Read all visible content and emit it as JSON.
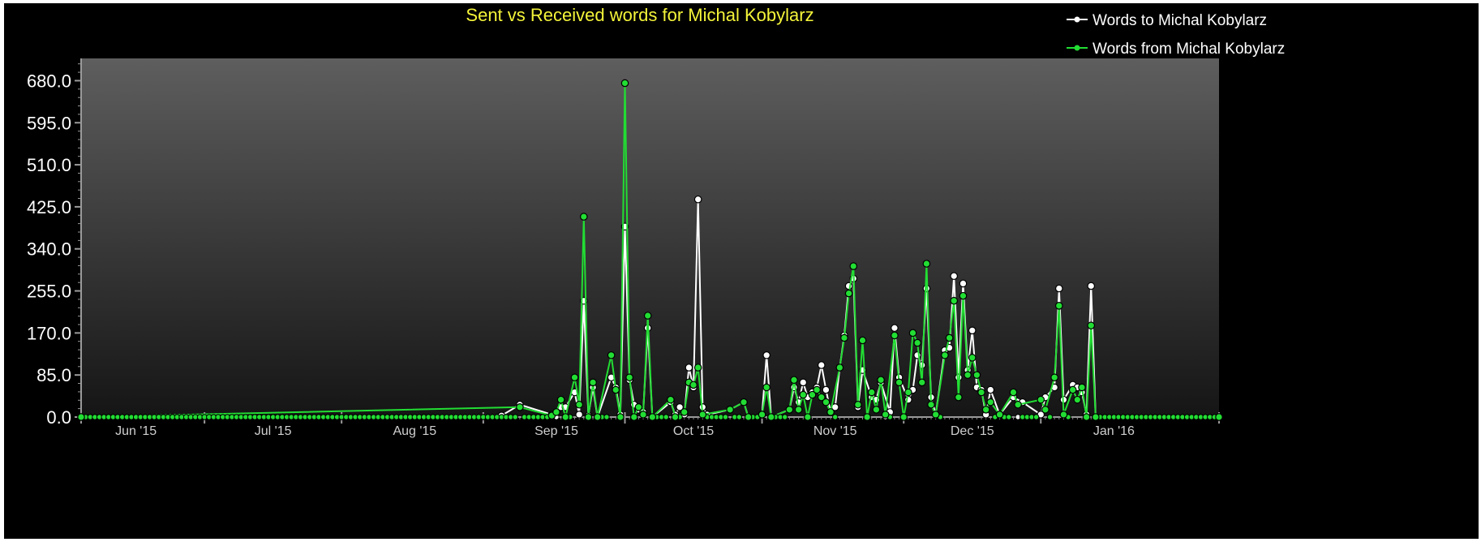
{
  "chart_data": {
    "type": "line",
    "title": "Sent vs Received words for Michal Kobylarz",
    "xlabel": "",
    "ylabel": "",
    "ylim": [
      0,
      725
    ],
    "x_range": [
      "2015-05-20",
      "2016-01-24"
    ],
    "yticks": [
      "0.0",
      "85.0",
      "170.0",
      "255.0",
      "340.0",
      "425.0",
      "510.0",
      "595.0",
      "680.0"
    ],
    "ytick_values": [
      0,
      85,
      170,
      255,
      340,
      425,
      510,
      595,
      680
    ],
    "xticks": [
      {
        "date": "2015-06-01",
        "label": "Jun '15"
      },
      {
        "date": "2015-07-01",
        "label": "Jul '15"
      },
      {
        "date": "2015-08-01",
        "label": "Aug '15"
      },
      {
        "date": "2015-09-01",
        "label": "Sep '15"
      },
      {
        "date": "2015-10-01",
        "label": "Oct '15"
      },
      {
        "date": "2015-11-01",
        "label": "Nov '15"
      },
      {
        "date": "2015-12-01",
        "label": "Dec '15"
      },
      {
        "date": "2016-01-01",
        "label": "Jan '16"
      }
    ],
    "grid": false,
    "legend_position": "top-right",
    "background": {
      "top": "#5e5e5e",
      "bottom": "#151515"
    },
    "series": [
      {
        "name": "Words to Michal Kobylarz",
        "color": "#ffffff",
        "points": [
          [
            "2015-05-20",
            0
          ],
          [
            "2015-08-20",
            3
          ],
          [
            "2015-08-24",
            25
          ],
          [
            "2015-08-31",
            5
          ],
          [
            "2015-09-02",
            20
          ],
          [
            "2015-09-03",
            20
          ],
          [
            "2015-09-05",
            50
          ],
          [
            "2015-09-06",
            5
          ],
          [
            "2015-09-07",
            235
          ],
          [
            "2015-09-08",
            3
          ],
          [
            "2015-09-09",
            60
          ],
          [
            "2015-09-10",
            0
          ],
          [
            "2015-09-13",
            80
          ],
          [
            "2015-09-14",
            60
          ],
          [
            "2015-09-15",
            5
          ],
          [
            "2015-09-16",
            385
          ],
          [
            "2015-09-17",
            75
          ],
          [
            "2015-09-18",
            25
          ],
          [
            "2015-09-19",
            15
          ],
          [
            "2015-09-20",
            10
          ],
          [
            "2015-09-21",
            180
          ],
          [
            "2015-09-22",
            0
          ],
          [
            "2015-09-26",
            30
          ],
          [
            "2015-09-27",
            5
          ],
          [
            "2015-09-28",
            20
          ],
          [
            "2015-09-29",
            5
          ],
          [
            "2015-09-30",
            100
          ],
          [
            "2015-10-01",
            60
          ],
          [
            "2015-10-02",
            440
          ],
          [
            "2015-10-03",
            20
          ],
          [
            "2015-10-04",
            5
          ],
          [
            "2015-10-09",
            15
          ],
          [
            "2015-10-12",
            30
          ],
          [
            "2015-10-13",
            0
          ],
          [
            "2015-10-16",
            5
          ],
          [
            "2015-10-17",
            125
          ],
          [
            "2015-10-18",
            0
          ],
          [
            "2015-10-22",
            15
          ],
          [
            "2015-10-23",
            60
          ],
          [
            "2015-10-24",
            30
          ],
          [
            "2015-10-25",
            70
          ],
          [
            "2015-10-26",
            40
          ],
          [
            "2015-10-27",
            50
          ],
          [
            "2015-10-28",
            60
          ],
          [
            "2015-10-29",
            105
          ],
          [
            "2015-10-30",
            55
          ],
          [
            "2015-10-31",
            10
          ],
          [
            "2015-11-01",
            20
          ],
          [
            "2015-11-02",
            100
          ],
          [
            "2015-11-03",
            165
          ],
          [
            "2015-11-04",
            265
          ],
          [
            "2015-11-05",
            280
          ],
          [
            "2015-11-06",
            20
          ],
          [
            "2015-11-07",
            95
          ],
          [
            "2015-11-09",
            40
          ],
          [
            "2015-11-10",
            35
          ],
          [
            "2015-11-11",
            70
          ],
          [
            "2015-11-13",
            10
          ],
          [
            "2015-11-14",
            180
          ],
          [
            "2015-11-15",
            80
          ],
          [
            "2015-11-17",
            35
          ],
          [
            "2015-11-18",
            55
          ],
          [
            "2015-11-19",
            125
          ],
          [
            "2015-11-20",
            105
          ],
          [
            "2015-11-21",
            260
          ],
          [
            "2015-11-22",
            40
          ],
          [
            "2015-11-23",
            5
          ],
          [
            "2015-11-25",
            135
          ],
          [
            "2015-11-26",
            140
          ],
          [
            "2015-11-27",
            285
          ],
          [
            "2015-11-28",
            80
          ],
          [
            "2015-11-29",
            270
          ],
          [
            "2015-11-30",
            95
          ],
          [
            "2015-12-01",
            175
          ],
          [
            "2015-12-02",
            60
          ],
          [
            "2015-12-03",
            55
          ],
          [
            "2015-12-04",
            5
          ],
          [
            "2015-12-05",
            55
          ],
          [
            "2015-12-07",
            5
          ],
          [
            "2015-12-10",
            40
          ],
          [
            "2015-12-12",
            30
          ],
          [
            "2015-12-16",
            5
          ],
          [
            "2015-12-17",
            40
          ],
          [
            "2015-12-19",
            60
          ],
          [
            "2015-12-20",
            260
          ],
          [
            "2015-12-21",
            35
          ],
          [
            "2015-12-23",
            65
          ],
          [
            "2015-12-24",
            60
          ],
          [
            "2015-12-25",
            50
          ],
          [
            "2015-12-26",
            5
          ],
          [
            "2015-12-27",
            265
          ],
          [
            "2015-12-28",
            0
          ],
          [
            "2016-01-24",
            0
          ]
        ]
      },
      {
        "name": "Words from Michal Kobylarz",
        "color": "#22dd33",
        "points": [
          [
            "2015-05-20",
            0
          ],
          [
            "2015-08-24",
            20
          ],
          [
            "2015-08-31",
            3
          ],
          [
            "2015-09-01",
            10
          ],
          [
            "2015-09-02",
            35
          ],
          [
            "2015-09-03",
            0
          ],
          [
            "2015-09-05",
            80
          ],
          [
            "2015-09-06",
            25
          ],
          [
            "2015-09-07",
            405
          ],
          [
            "2015-09-08",
            0
          ],
          [
            "2015-09-09",
            70
          ],
          [
            "2015-09-10",
            0
          ],
          [
            "2015-09-13",
            125
          ],
          [
            "2015-09-14",
            55
          ],
          [
            "2015-09-15",
            0
          ],
          [
            "2015-09-16",
            675
          ],
          [
            "2015-09-17",
            80
          ],
          [
            "2015-09-18",
            0
          ],
          [
            "2015-09-19",
            20
          ],
          [
            "2015-09-20",
            5
          ],
          [
            "2015-09-21",
            205
          ],
          [
            "2015-09-22",
            0
          ],
          [
            "2015-09-26",
            35
          ],
          [
            "2015-09-27",
            0
          ],
          [
            "2015-09-29",
            10
          ],
          [
            "2015-09-30",
            70
          ],
          [
            "2015-10-01",
            65
          ],
          [
            "2015-10-02",
            100
          ],
          [
            "2015-10-03",
            5
          ],
          [
            "2015-10-09",
            15
          ],
          [
            "2015-10-12",
            30
          ],
          [
            "2015-10-13",
            0
          ],
          [
            "2015-10-16",
            5
          ],
          [
            "2015-10-17",
            60
          ],
          [
            "2015-10-18",
            0
          ],
          [
            "2015-10-22",
            15
          ],
          [
            "2015-10-23",
            75
          ],
          [
            "2015-10-24",
            15
          ],
          [
            "2015-10-25",
            45
          ],
          [
            "2015-10-26",
            0
          ],
          [
            "2015-10-27",
            45
          ],
          [
            "2015-10-28",
            55
          ],
          [
            "2015-10-29",
            40
          ],
          [
            "2015-10-30",
            30
          ],
          [
            "2015-10-31",
            10
          ],
          [
            "2015-11-02",
            100
          ],
          [
            "2015-11-03",
            160
          ],
          [
            "2015-11-04",
            250
          ],
          [
            "2015-11-05",
            305
          ],
          [
            "2015-11-06",
            25
          ],
          [
            "2015-11-07",
            155
          ],
          [
            "2015-11-08",
            0
          ],
          [
            "2015-11-09",
            50
          ],
          [
            "2015-11-10",
            15
          ],
          [
            "2015-11-11",
            75
          ],
          [
            "2015-11-12",
            5
          ],
          [
            "2015-11-14",
            165
          ],
          [
            "2015-11-15",
            70
          ],
          [
            "2015-11-16",
            0
          ],
          [
            "2015-11-17",
            50
          ],
          [
            "2015-11-18",
            170
          ],
          [
            "2015-11-19",
            150
          ],
          [
            "2015-11-20",
            70
          ],
          [
            "2015-11-21",
            310
          ],
          [
            "2015-11-22",
            25
          ],
          [
            "2015-11-23",
            5
          ],
          [
            "2015-11-25",
            125
          ],
          [
            "2015-11-26",
            160
          ],
          [
            "2015-11-27",
            235
          ],
          [
            "2015-11-28",
            40
          ],
          [
            "2015-11-29",
            245
          ],
          [
            "2015-11-30",
            85
          ],
          [
            "2015-12-01",
            120
          ],
          [
            "2015-12-02",
            85
          ],
          [
            "2015-12-03",
            50
          ],
          [
            "2015-12-04",
            15
          ],
          [
            "2015-12-05",
            30
          ],
          [
            "2015-12-07",
            5
          ],
          [
            "2015-12-10",
            50
          ],
          [
            "2015-12-11",
            25
          ],
          [
            "2015-12-16",
            35
          ],
          [
            "2015-12-17",
            15
          ],
          [
            "2015-12-19",
            80
          ],
          [
            "2015-12-20",
            225
          ],
          [
            "2015-12-21",
            5
          ],
          [
            "2015-12-23",
            55
          ],
          [
            "2015-12-24",
            35
          ],
          [
            "2015-12-25",
            60
          ],
          [
            "2015-12-26",
            0
          ],
          [
            "2015-12-27",
            185
          ],
          [
            "2015-12-28",
            0
          ],
          [
            "2016-01-24",
            0
          ]
        ]
      }
    ]
  }
}
